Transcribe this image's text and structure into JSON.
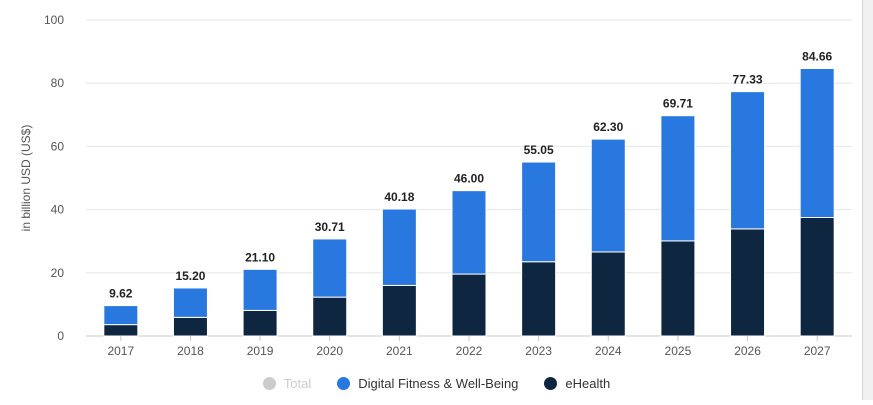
{
  "chart_data": {
    "type": "bar",
    "stacked": true,
    "categories": [
      "2017",
      "2018",
      "2019",
      "2020",
      "2021",
      "2022",
      "2023",
      "2024",
      "2025",
      "2026",
      "2027"
    ],
    "series": [
      {
        "name": "eHealth",
        "color": "#0f2640",
        "values": [
          3.6,
          5.9,
          8.1,
          12.3,
          16.0,
          19.6,
          23.5,
          26.6,
          30.1,
          33.9,
          37.5
        ]
      },
      {
        "name": "Digital Fitness & Well-Being",
        "color": "#2878e0",
        "values": [
          6.02,
          9.3,
          13.0,
          18.41,
          24.18,
          26.4,
          31.55,
          35.7,
          39.61,
          43.43,
          47.16
        ]
      }
    ],
    "totals": [
      "9.62",
      "15.20",
      "21.10",
      "30.71",
      "40.18",
      "46.00",
      "55.05",
      "62.30",
      "69.71",
      "77.33",
      "84.66"
    ],
    "ylabel": "in billion USD (US$)",
    "ylim": [
      0,
      100
    ],
    "yticks": [
      0,
      20,
      40,
      60,
      80,
      100
    ],
    "grid": true,
    "legend_position": "bottom"
  },
  "legend": [
    {
      "label": "Total",
      "color": "#cccccc",
      "state": "hidden"
    },
    {
      "label": "Digital Fitness & Well-Being",
      "color": "#2878e0",
      "state": "visible"
    },
    {
      "label": "eHealth",
      "color": "#0f2640",
      "state": "visible"
    }
  ]
}
